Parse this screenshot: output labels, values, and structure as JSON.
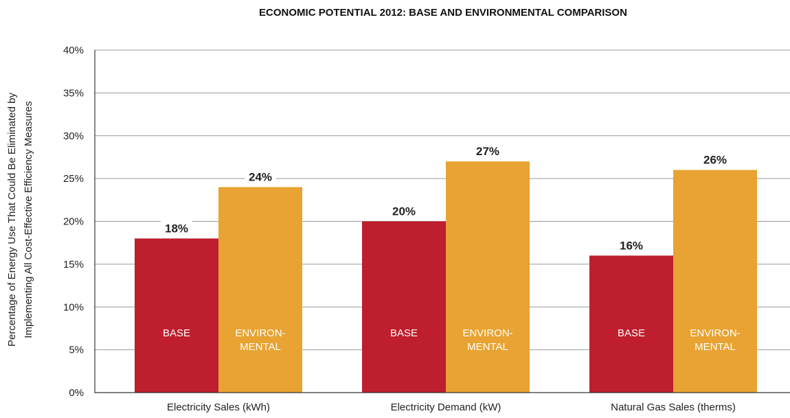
{
  "chart_data": {
    "type": "bar",
    "title": "ECONOMIC POTENTIAL 2012: BASE AND ENVIRONMENTAL COMPARISON",
    "ylabel_lines": [
      "Percentage of Energy Use That Could Be Eliminated by",
      "Implementing All Cost-Effective Efficiency Measures"
    ],
    "xlabel": "",
    "ylim": [
      0,
      40
    ],
    "yticks": [
      0,
      5,
      10,
      15,
      20,
      25,
      30,
      35,
      40
    ],
    "ytick_labels": [
      "0%",
      "5%",
      "10%",
      "15%",
      "20%",
      "25%",
      "30%",
      "35%",
      "40%"
    ],
    "grid": true,
    "categories": [
      "Electricity Sales (kWh)",
      "Electricity Demand (kW)",
      "Natural Gas Sales (therms)"
    ],
    "series": [
      {
        "name": "BASE",
        "label_lines": [
          "BASE"
        ],
        "color": "#BE1E2D",
        "values": [
          18,
          20,
          16
        ],
        "value_labels": [
          "18%",
          "20%",
          "16%"
        ]
      },
      {
        "name": "ENVIRONMENTAL",
        "label_lines": [
          "ENVIRON-",
          "MENTAL"
        ],
        "color": "#E8A332",
        "values": [
          24,
          27,
          26
        ],
        "value_labels": [
          "24%",
          "27%",
          "26%"
        ]
      }
    ]
  }
}
